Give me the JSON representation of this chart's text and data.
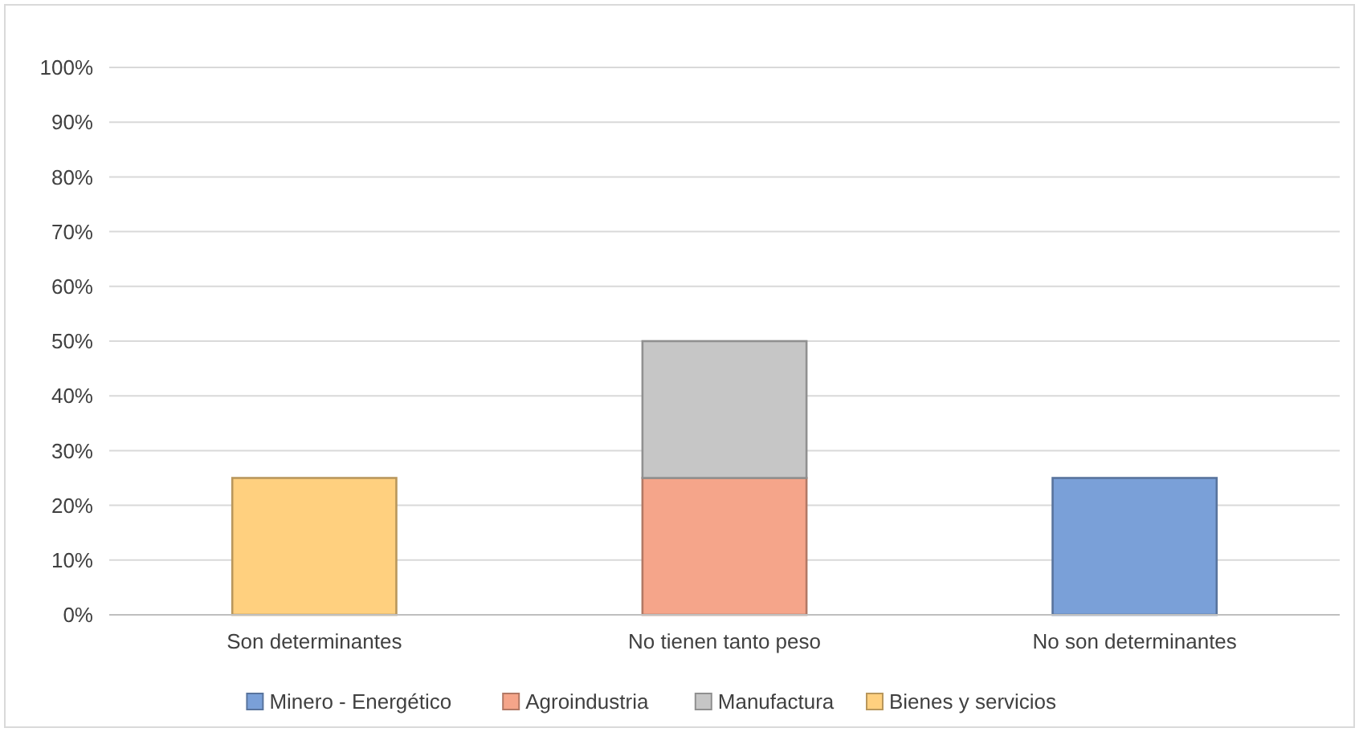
{
  "chart_data": {
    "type": "bar",
    "stacked": true,
    "categories": [
      "Son determinantes",
      "No tienen tanto peso",
      "No son determinantes"
    ],
    "series": [
      {
        "name": "Minero - Energético",
        "color": "#7aa0d8",
        "values": [
          null,
          null,
          25
        ]
      },
      {
        "name": "Agroindustria",
        "color": "#f5a58a",
        "values": [
          null,
          25,
          null
        ]
      },
      {
        "name": "Manufactura",
        "color": "#c6c6c6",
        "values": [
          null,
          25,
          null
        ]
      },
      {
        "name": "Bienes y servicios",
        "color": "#ffd07f",
        "values": [
          25,
          null,
          null
        ]
      }
    ],
    "ylim": [
      0,
      100
    ],
    "yticks": [
      {
        "value": 0,
        "label": "0%"
      },
      {
        "value": 10,
        "label": "10%"
      },
      {
        "value": 20,
        "label": "20%"
      },
      {
        "value": 30,
        "label": "30%"
      },
      {
        "value": 40,
        "label": "40%"
      },
      {
        "value": 50,
        "label": "50%"
      },
      {
        "value": 60,
        "label": "60%"
      },
      {
        "value": 70,
        "label": "70%"
      },
      {
        "value": 80,
        "label": "80%"
      },
      {
        "value": 90,
        "label": "90%"
      },
      {
        "value": 100,
        "label": "100%"
      }
    ],
    "grid": "y",
    "legend": "bottom"
  }
}
